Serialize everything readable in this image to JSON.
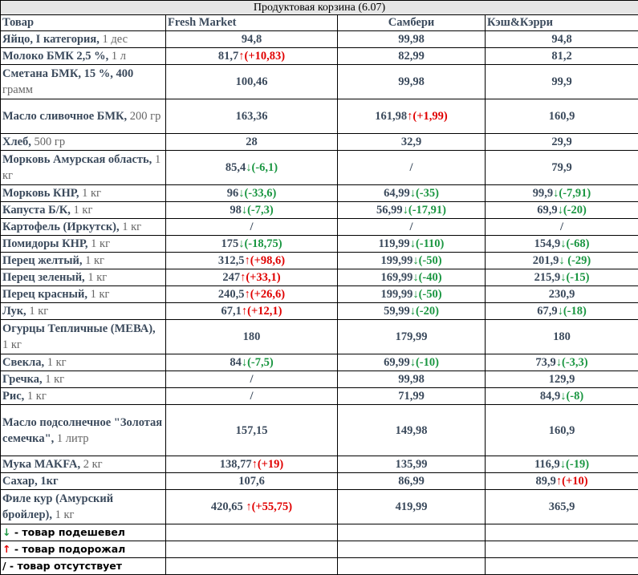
{
  "title": "Продуктовая корзина (6.07)",
  "headers": [
    "Товар",
    "Fresh Market",
    "Самбери",
    "Кэш&Кэрри"
  ],
  "rows": [
    {
      "name": "Яйцо, I категория,",
      "unit": " 1 дес",
      "h": 20,
      "cells": [
        {
          "v": "94,8"
        },
        {
          "v": "99,98"
        },
        {
          "v": "94,8"
        }
      ]
    },
    {
      "name": "Молоко БМК 2,5 %,",
      "unit": " 1 л",
      "h": 20,
      "cells": [
        {
          "v": "81,7",
          "dir": "up",
          "d": "(+10,83)"
        },
        {
          "v": "82,99"
        },
        {
          "v": "81,2"
        }
      ]
    },
    {
      "name": "Сметана БМК, 15 %, 400",
      "unit": " грамм",
      "h": 43,
      "cells": [
        {
          "v": "100,46"
        },
        {
          "v": "99,98"
        },
        {
          "v": "99,9"
        }
      ]
    },
    {
      "name": "Масло сливочное БМК,",
      "unit": " 200 гр",
      "h": 43,
      "cells": [
        {
          "v": "163,36"
        },
        {
          "v": "161,98",
          "dir": "up",
          "d": "(+1,99)"
        },
        {
          "v": "160,9"
        }
      ]
    },
    {
      "name": "Хлеб,",
      "unit": " 500 гр",
      "h": 20,
      "cells": [
        {
          "v": "28"
        },
        {
          "v": "32,9"
        },
        {
          "v": "29,9"
        }
      ]
    },
    {
      "name": "Морковь Амурская область,",
      "unit": " 1 кг",
      "h": 43,
      "cells": [
        {
          "v": "85,4",
          "dir": "down",
          "d": "(-6,1)"
        },
        {
          "v": "/"
        },
        {
          "v": "79,9"
        }
      ]
    },
    {
      "name": "Морковь КНР,",
      "unit": " 1 кг",
      "h": 20,
      "cells": [
        {
          "v": "96",
          "dir": "down",
          "d": "(-33,6)"
        },
        {
          "v": "64,99",
          "dir": "down",
          "d": "(-35)"
        },
        {
          "v": "99,9",
          "dir": "down",
          "d": "(-7,91)"
        }
      ]
    },
    {
      "name": "Капуста Б/К,",
      "unit": " 1 кг",
      "h": 20,
      "cells": [
        {
          "v": "98",
          "dir": "down",
          "d": "(-7,3)"
        },
        {
          "v": "56,99",
          "dir": "down",
          "d": "(-17,91)"
        },
        {
          "v": "69,9",
          "dir": "down",
          "d": "(-20)"
        }
      ]
    },
    {
      "name": "Картофель (Иркутск),",
      "unit": " 1 кг",
      "h": 20,
      "cells": [
        {
          "v": "/"
        },
        {
          "v": "/"
        },
        {
          "v": "/"
        }
      ]
    },
    {
      "name": "Помидоры КНР,",
      "unit": " 1 кг",
      "h": 20,
      "cells": [
        {
          "v": "175",
          "dir": "down",
          "d": "(-18,75)"
        },
        {
          "v": "119,99",
          "dir": "down",
          "d": "(-110)"
        },
        {
          "v": "154,9",
          "dir": "down",
          "d": "(-68)"
        }
      ]
    },
    {
      "name": "Перец желтый,",
      "unit": " 1 кг",
      "h": 20,
      "cells": [
        {
          "v": "312,5",
          "dir": "up",
          "d": "(+98,6)"
        },
        {
          "v": "199,99",
          "dir": "down",
          "d": "(-50)"
        },
        {
          "v": "201,9",
          "dir": "down",
          "d": " (-29)"
        }
      ]
    },
    {
      "name": "Перец зеленый,",
      "unit": " 1 кг",
      "h": 20,
      "cells": [
        {
          "v": "247",
          "dir": "up",
          "d": "(+33,1)"
        },
        {
          "v": "169,99",
          "dir": "down",
          "d": "(-40)"
        },
        {
          "v": "215,9",
          "dir": "down",
          "d": "(-15)"
        }
      ]
    },
    {
      "name": "Перец красный,",
      "unit": " 1 кг",
      "h": 20,
      "cells": [
        {
          "v": "240,5",
          "dir": "up",
          "d": "(+26,6)"
        },
        {
          "v": "199,99",
          "dir": "down",
          "d": "(-50)"
        },
        {
          "v": "230,9"
        }
      ]
    },
    {
      "name": "Лук,",
      "unit": " 1 кг",
      "h": 20,
      "cells": [
        {
          "v": "67,1",
          "dir": "up",
          "d": "(+12,1)"
        },
        {
          "v": "59,99",
          "dir": "down",
          "d": "(-20)"
        },
        {
          "v": "67,9",
          "dir": "down",
          "d": "(-18)"
        }
      ]
    },
    {
      "name": "Огурцы Тепличные (МЕВА),",
      "unit": " 1 кг",
      "h": 43,
      "cells": [
        {
          "v": "180"
        },
        {
          "v": "179,99"
        },
        {
          "v": "180"
        }
      ]
    },
    {
      "name": "Свекла,",
      "unit": " 1 кг",
      "h": 20,
      "cells": [
        {
          "v": "84",
          "dir": "down",
          "d": "(-7,5)"
        },
        {
          "v": "69,99",
          "dir": "down",
          "d": "(-10)"
        },
        {
          "v": "73,9",
          "dir": "down",
          "d": "(-3,3)"
        }
      ]
    },
    {
      "name": "Гречка,",
      "unit": " 1 кг",
      "h": 20,
      "cells": [
        {
          "v": "/"
        },
        {
          "v": "99,98"
        },
        {
          "v": "129,9"
        }
      ]
    },
    {
      "name": "Рис,",
      "unit": " 1 кг",
      "h": 20,
      "cells": [
        {
          "v": "/"
        },
        {
          "v": "71,99"
        },
        {
          "v": "84,9",
          "dir": "down",
          "d": "(-8)"
        }
      ]
    },
    {
      "name": "Масло подсолнечное \"Золотая семечка\",",
      "unit": " 1 литр",
      "h": 64,
      "cells": [
        {
          "v": "157,15"
        },
        {
          "v": "149,98"
        },
        {
          "v": "160,9"
        }
      ]
    },
    {
      "name": "Мука MAKFA,",
      "unit": " 2 кг",
      "h": 20,
      "cells": [
        {
          "v": "138,77",
          "dir": "up",
          "d": "(+19)"
        },
        {
          "v": "135,99"
        },
        {
          "v": "116,9",
          "dir": "down",
          "d": "(-19)"
        }
      ]
    },
    {
      "name": "Сахар, 1кг",
      "unit": "",
      "h": 20,
      "cells": [
        {
          "v": "107,6"
        },
        {
          "v": "86,99"
        },
        {
          "v": "89,9",
          "dir": "up",
          "d": "(+10)"
        }
      ]
    },
    {
      "name": "Филе кур (Амурский бройлер),",
      "unit": " 1 кг",
      "h": 43,
      "cells": [
        {
          "v": "420,65 ",
          "dir": "up",
          "d": "(+55,75)"
        },
        {
          "v": "419,99"
        },
        {
          "v": "365,9"
        }
      ]
    }
  ],
  "legend": [
    {
      "sym": "↓",
      "cls": "down",
      "text": " - товар подешевел"
    },
    {
      "sym": "↑",
      "cls": "up",
      "text": " - товар подорожал"
    },
    {
      "sym": "/",
      "cls": "",
      "text": " - товар отсутствует"
    }
  ],
  "colors": {
    "down": "#1a9641",
    "up": "#e00000",
    "text": "#3b4a5c",
    "title_bg": "#e6e6e6"
  }
}
